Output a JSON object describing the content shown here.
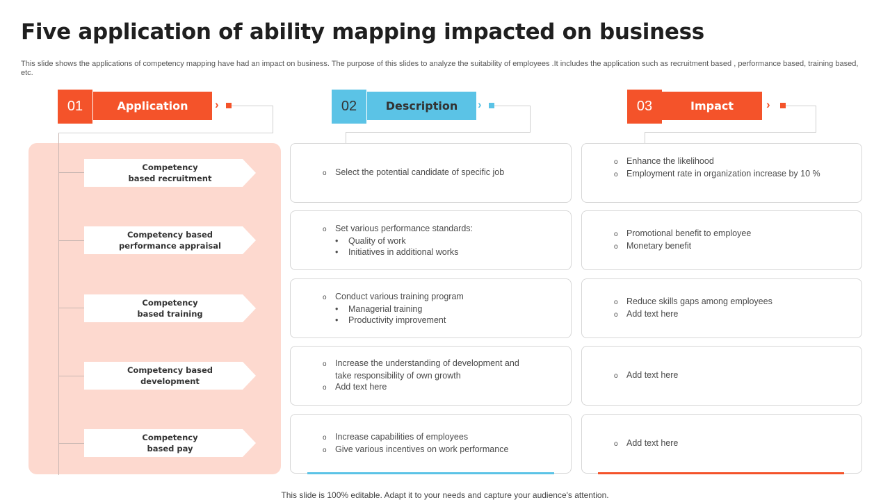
{
  "title": "Five application of ability mapping impacted on business",
  "subtitle": "This slide shows the applications of competency mapping have had an impact on business. The purpose of this slides to analyze the suitability of employees  .It includes the application such as recruitment based , performance based, training based, etc.",
  "colors": {
    "orange": "#f4532a",
    "blue": "#5bc3e6",
    "panel": "#fdd9cf"
  },
  "headers": [
    {
      "num": "01",
      "label": "Application"
    },
    {
      "num": "02",
      "label": "Description"
    },
    {
      "num": "03",
      "label": "Impact"
    }
  ],
  "chevron": "›",
  "applications": [
    "Competency\nbased recruitment",
    "Competency based\nperformance appraisal",
    "Competency\nbased training",
    "Competency based\ndevelopment",
    "Competency\nbased pay"
  ],
  "descriptions": [
    {
      "c1": "Select the potential candidate of specific job"
    },
    {
      "c1": "Set various  performance  standards:",
      "b1": "Quality of work",
      "b2": "Initiatives  in additional works"
    },
    {
      "c1": "Conduct various  training program",
      "b1": "Managerial training",
      "b2": "Productivity improvement"
    },
    {
      "c1": "Increase the understanding  of development  and",
      "w1": "take responsibility of own growth",
      "c2": "Add text here"
    },
    {
      "c1": "Increase capabilities of employees",
      "c2": "Give various  incentives  on work performance"
    }
  ],
  "impacts": [
    {
      "c1": "Enhance the likelihood",
      "c2": "Employment  rate in organization increase by 10 %"
    },
    {
      "c1": "Promotional benefit  to employee",
      "c2": "Monetary benefit"
    },
    {
      "c1": "Reduce skills gaps among employees",
      "c2": "Add text here"
    },
    {
      "c1": "Add text here"
    },
    {
      "c1": "Add text here"
    }
  ],
  "footer": "This slide is 100% editable. Adapt it to your needs and capture your audience's attention."
}
